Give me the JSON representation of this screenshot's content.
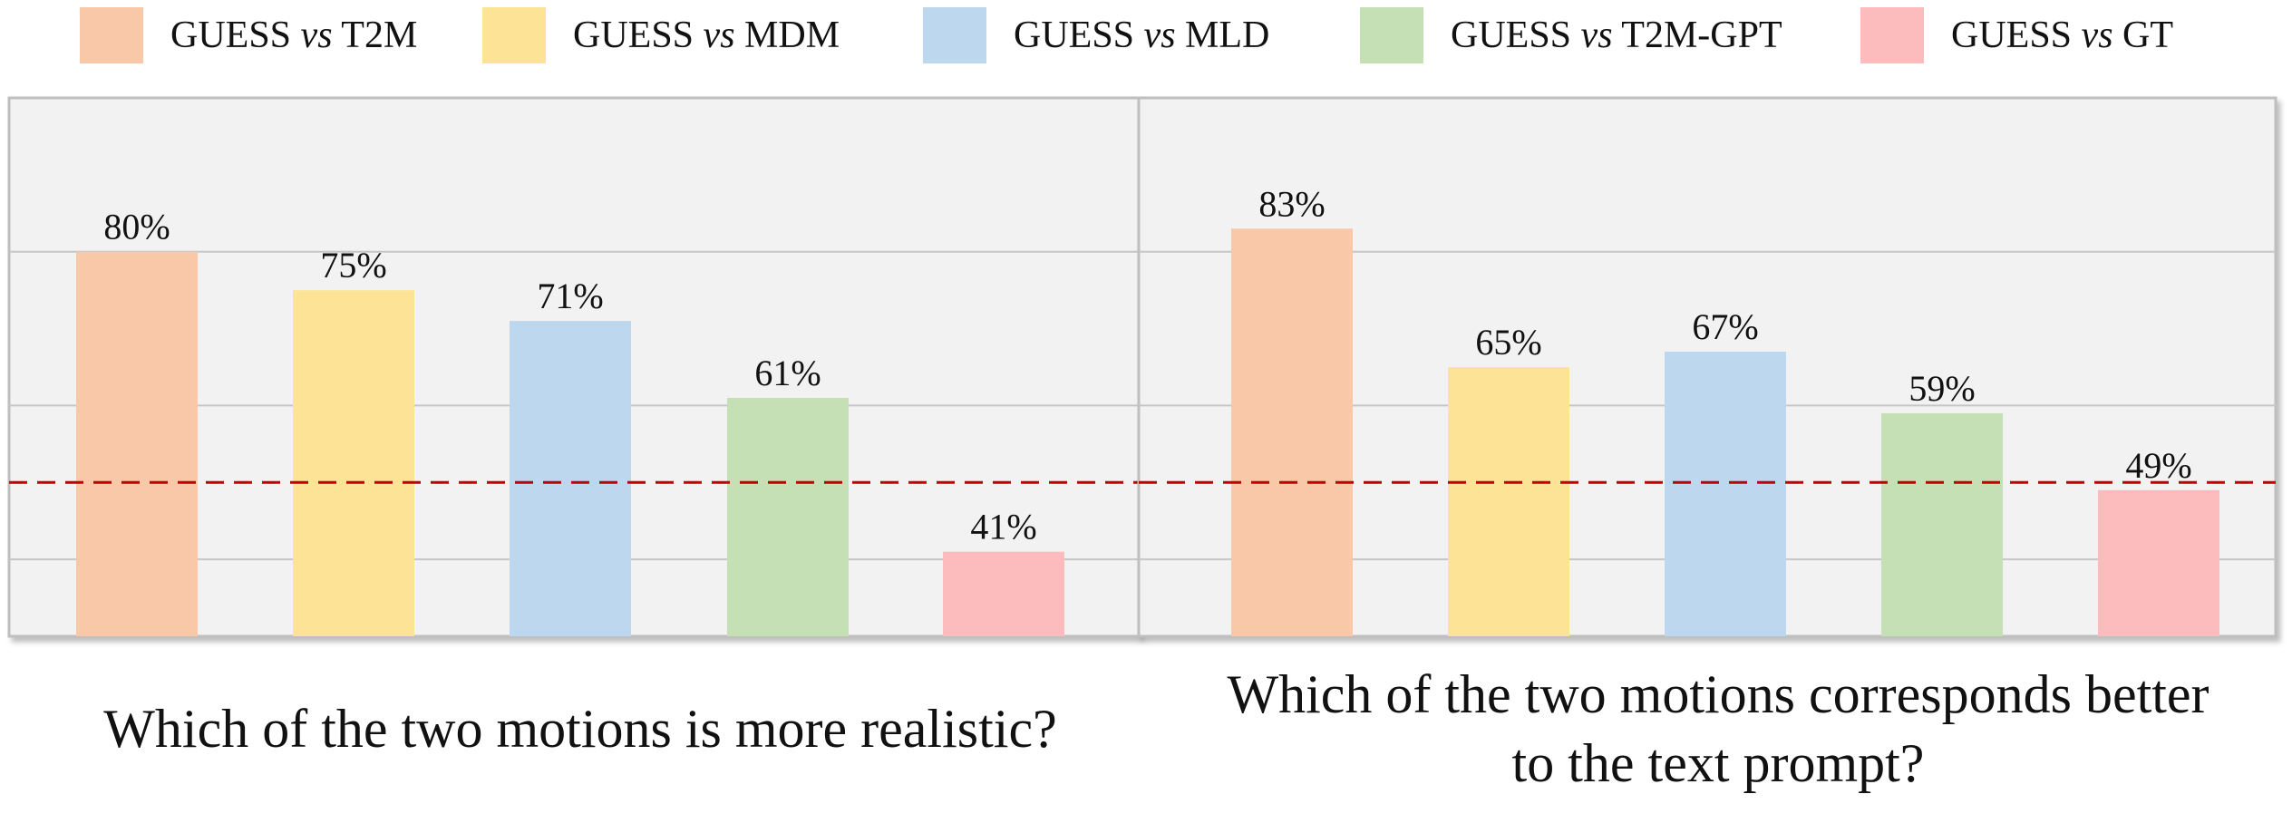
{
  "legend": [
    {
      "prefix": "GUESS",
      "vs": "vs",
      "suffix": "T2M",
      "color": "#F8C8A9"
    },
    {
      "prefix": "GUESS",
      "vs": "vs",
      "suffix": "MDM",
      "color": "#FDE396"
    },
    {
      "prefix": "GUESS",
      "vs": "vs",
      "suffix": "MLD",
      "color": "#BDD7EE"
    },
    {
      "prefix": "GUESS",
      "vs": "vs",
      "suffix": "T2M-GPT",
      "color": "#C5E0B4"
    },
    {
      "prefix": "GUESS",
      "vs": "vs",
      "suffix": "GT",
      "color": "#FCBCBE"
    }
  ],
  "chart_data": [
    {
      "type": "bar",
      "title": "Which of the two motions is more realistic?",
      "categories": [
        "GUESS vs T2M",
        "GUESS vs MDM",
        "GUESS vs MLD",
        "GUESS vs T2M-GPT",
        "GUESS vs GT"
      ],
      "values": [
        80,
        75,
        71,
        61,
        41
      ],
      "data_labels": [
        "80%",
        "75%",
        "71%",
        "61%",
        "41%"
      ],
      "unit": "%",
      "ylim": [
        30,
        100
      ],
      "gridlines": [
        40,
        60,
        80
      ],
      "reference_line": {
        "value": 50,
        "style": "dashed",
        "color": "#C00000"
      },
      "grid": true,
      "legend": "top"
    },
    {
      "type": "bar",
      "title_lines": [
        "Which of the two motions corresponds better",
        "to the text prompt?"
      ],
      "categories": [
        "GUESS vs T2M",
        "GUESS vs MDM",
        "GUESS vs MLD",
        "GUESS vs T2M-GPT",
        "GUESS vs GT"
      ],
      "values": [
        83,
        65,
        67,
        59,
        49
      ],
      "data_labels": [
        "83%",
        "65%",
        "67%",
        "59%",
        "49%"
      ],
      "unit": "%",
      "ylim": [
        30,
        100
      ],
      "gridlines": [
        40,
        60,
        80
      ],
      "reference_line": {
        "value": 50,
        "style": "dashed",
        "color": "#C00000"
      },
      "grid": true,
      "legend": "top"
    }
  ]
}
